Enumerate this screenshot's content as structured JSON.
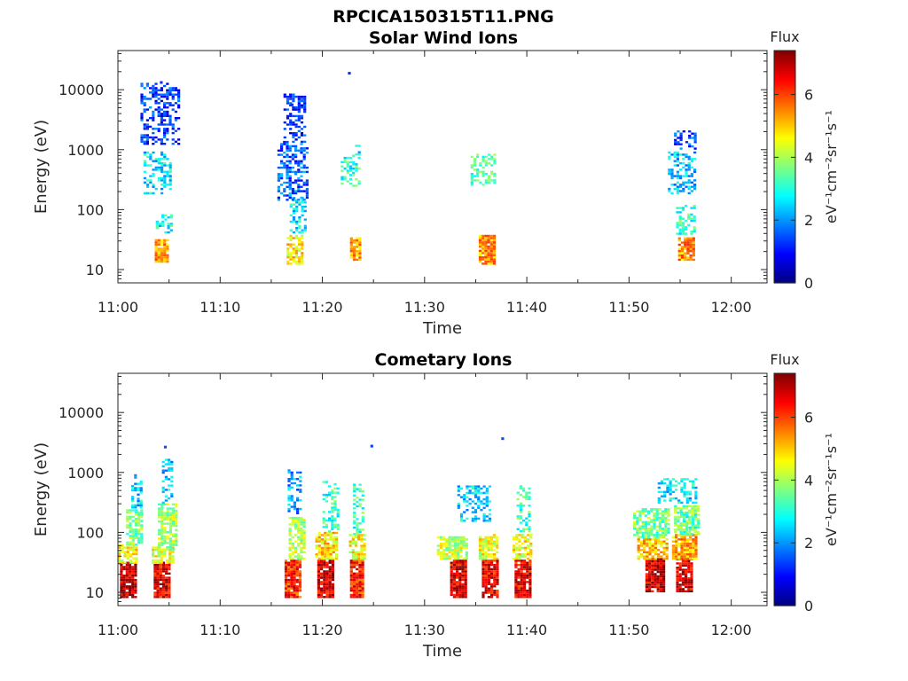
{
  "figure": {
    "title": "RPCICA150315T11.PNG"
  },
  "colors": {
    "axes": "#262626",
    "colormap": [
      "#00007f",
      "#0000ff",
      "#007fff",
      "#00ffff",
      "#7fff7f",
      "#ffff00",
      "#ff7f00",
      "#ff0000",
      "#7f0000"
    ]
  },
  "chart_data": [
    {
      "type": "heatmap",
      "title": "Solar Wind Ions",
      "xlabel": "Time",
      "ylabel": "Energy (eV)",
      "x_ticks": [
        "11:00",
        "11:10",
        "11:20",
        "11:30",
        "11:40",
        "11:50",
        "12:00"
      ],
      "xlim_minutes": [
        0,
        63.5
      ],
      "y_scale": "log",
      "y_ticks": [
        "10",
        "100",
        "1000",
        "10000"
      ],
      "ylim": [
        6,
        45000
      ],
      "colorbar": {
        "title": "Flux",
        "label": "eV⁻¹cm⁻²sr⁻¹s⁻¹",
        "ticks": [
          "0",
          "2",
          "4",
          "6"
        ],
        "clim": [
          0,
          7.4
        ]
      },
      "blobs": [
        {
          "t0": 3.6,
          "t1": 4.9,
          "e0": 13,
          "e1": 32,
          "v": 5.3
        },
        {
          "t0": 3.7,
          "t1": 5.3,
          "e0": 40,
          "e1": 80,
          "v": 2.9
        },
        {
          "t0": 2.5,
          "t1": 5.2,
          "e0": 180,
          "e1": 900,
          "v": 2.6
        },
        {
          "t0": 2.2,
          "t1": 5.9,
          "e0": 1200,
          "e1": 12000,
          "v": 1.3
        },
        {
          "t0": 16.5,
          "t1": 17.9,
          "e0": 12,
          "e1": 35,
          "v": 4.8
        },
        {
          "t0": 16.8,
          "t1": 18.3,
          "e0": 40,
          "e1": 160,
          "v": 2.7
        },
        {
          "t0": 15.6,
          "t1": 18.6,
          "e0": 140,
          "e1": 1300,
          "v": 1.6
        },
        {
          "t0": 16.2,
          "t1": 18.3,
          "e0": 1300,
          "e1": 8000,
          "v": 1.2
        },
        {
          "t0": 22.7,
          "t1": 23.8,
          "e0": 14,
          "e1": 34,
          "v": 5.2
        },
        {
          "t0": 21.8,
          "t1": 23.7,
          "e0": 240,
          "e1": 800,
          "v": 3.1
        },
        {
          "t0": 23.2,
          "t1": 23.7,
          "e0": 800,
          "e1": 1200,
          "v": 2.6
        },
        {
          "t0": 35.3,
          "t1": 36.7,
          "e0": 12,
          "e1": 36,
          "v": 5.3
        },
        {
          "t0": 34.5,
          "t1": 36.8,
          "e0": 250,
          "e1": 800,
          "v": 3.3
        },
        {
          "t0": 54.8,
          "t1": 56.2,
          "e0": 14,
          "e1": 34,
          "v": 5.4
        },
        {
          "t0": 54.6,
          "t1": 56.4,
          "e0": 38,
          "e1": 120,
          "v": 3.1
        },
        {
          "t0": 53.8,
          "t1": 56.4,
          "e0": 180,
          "e1": 900,
          "v": 2.3
        },
        {
          "t0": 54.4,
          "t1": 56.6,
          "e0": 1000,
          "e1": 2000,
          "v": 1.4
        }
      ],
      "points": [
        {
          "t": 22.5,
          "e": 18500,
          "v": 1.3
        },
        {
          "t": 4.1,
          "e": 13000,
          "v": 1.3
        },
        {
          "t": 16.9,
          "e": 5500,
          "v": 1.2
        }
      ]
    },
    {
      "type": "heatmap",
      "title": "Cometary Ions",
      "xlabel": "Time",
      "ylabel": "Energy (eV)",
      "x_ticks": [
        "11:00",
        "11:10",
        "11:20",
        "11:30",
        "11:40",
        "11:50",
        "12:00"
      ],
      "xlim_minutes": [
        0,
        63.5
      ],
      "y_scale": "log",
      "y_ticks": [
        "10",
        "100",
        "1000",
        "10000"
      ],
      "ylim": [
        6,
        45000
      ],
      "colorbar": {
        "title": "Flux",
        "label": "eV⁻¹cm⁻²sr⁻¹s⁻¹",
        "ticks": [
          "0",
          "2",
          "4",
          "6"
        ],
        "clim": [
          0,
          7.4
        ]
      },
      "blobs": [
        {
          "t0": 0.2,
          "t1": 1.6,
          "e0": 8,
          "e1": 30,
          "v": 6.9
        },
        {
          "t0": 0.0,
          "t1": 1.9,
          "e0": 30,
          "e1": 60,
          "v": 4.6
        },
        {
          "t0": 0.8,
          "t1": 2.2,
          "e0": 60,
          "e1": 240,
          "v": 3.7
        },
        {
          "t0": 1.3,
          "t1": 2.2,
          "e0": 250,
          "e1": 900,
          "v": 2.5
        },
        {
          "t0": 3.5,
          "t1": 5.0,
          "e0": 8,
          "e1": 30,
          "v": 6.7
        },
        {
          "t0": 3.3,
          "t1": 5.5,
          "e0": 30,
          "e1": 55,
          "v": 4.4
        },
        {
          "t0": 3.9,
          "t1": 5.7,
          "e0": 50,
          "e1": 300,
          "v": 4.0
        },
        {
          "t0": 4.3,
          "t1": 5.2,
          "e0": 300,
          "e1": 1600,
          "v": 2.4
        },
        {
          "t0": 16.3,
          "t1": 17.8,
          "e0": 8,
          "e1": 35,
          "v": 6.2
        },
        {
          "t0": 16.7,
          "t1": 18.3,
          "e0": 35,
          "e1": 180,
          "v": 4.1
        },
        {
          "t0": 16.6,
          "t1": 17.8,
          "e0": 200,
          "e1": 1100,
          "v": 2.1
        },
        {
          "t0": 19.5,
          "t1": 21.0,
          "e0": 8,
          "e1": 35,
          "v": 6.8
        },
        {
          "t0": 19.3,
          "t1": 21.3,
          "e0": 35,
          "e1": 100,
          "v": 4.8
        },
        {
          "t0": 20.0,
          "t1": 21.5,
          "e0": 100,
          "e1": 700,
          "v": 3.1
        },
        {
          "t0": 22.7,
          "t1": 24.0,
          "e0": 8,
          "e1": 35,
          "v": 6.2
        },
        {
          "t0": 22.6,
          "t1": 24.0,
          "e0": 35,
          "e1": 90,
          "v": 4.6
        },
        {
          "t0": 23.0,
          "t1": 24.1,
          "e0": 90,
          "e1": 600,
          "v": 3.2
        },
        {
          "t0": 32.5,
          "t1": 33.9,
          "e0": 8,
          "e1": 35,
          "v": 6.7
        },
        {
          "t0": 31.2,
          "t1": 34.2,
          "e0": 35,
          "e1": 80,
          "v": 4.2
        },
        {
          "t0": 33.2,
          "t1": 36.5,
          "e0": 150,
          "e1": 600,
          "v": 2.5
        },
        {
          "t0": 35.6,
          "t1": 37.0,
          "e0": 8,
          "e1": 35,
          "v": 6.6
        },
        {
          "t0": 35.3,
          "t1": 37.2,
          "e0": 35,
          "e1": 90,
          "v": 4.5
        },
        {
          "t0": 38.8,
          "t1": 40.2,
          "e0": 8,
          "e1": 35,
          "v": 6.6
        },
        {
          "t0": 38.6,
          "t1": 40.5,
          "e0": 35,
          "e1": 90,
          "v": 4.6
        },
        {
          "t0": 39.0,
          "t1": 40.2,
          "e0": 100,
          "e1": 600,
          "v": 3.2
        },
        {
          "t0": 51.6,
          "t1": 53.4,
          "e0": 10,
          "e1": 35,
          "v": 6.9
        },
        {
          "t0": 50.8,
          "t1": 53.6,
          "e0": 35,
          "e1": 80,
          "v": 5.0
        },
        {
          "t0": 50.4,
          "t1": 54.0,
          "e0": 80,
          "e1": 250,
          "v": 3.6
        },
        {
          "t0": 54.6,
          "t1": 56.0,
          "e0": 10,
          "e1": 35,
          "v": 6.8
        },
        {
          "t0": 54.2,
          "t1": 56.6,
          "e0": 35,
          "e1": 90,
          "v": 5.2
        },
        {
          "t0": 54.4,
          "t1": 56.8,
          "e0": 90,
          "e1": 280,
          "v": 3.7
        },
        {
          "t0": 52.8,
          "t1": 56.5,
          "e0": 300,
          "e1": 800,
          "v": 2.6
        },
        {
          "t0": 55.0,
          "t1": 56.8,
          "e0": 90,
          "e1": 220,
          "v": 3.4
        }
      ],
      "points": [
        {
          "t": 24.7,
          "e": 2700,
          "v": 1.4
        },
        {
          "t": 37.5,
          "e": 3600,
          "v": 1.5
        },
        {
          "t": 4.5,
          "e": 2600,
          "v": 1.5
        }
      ]
    }
  ]
}
